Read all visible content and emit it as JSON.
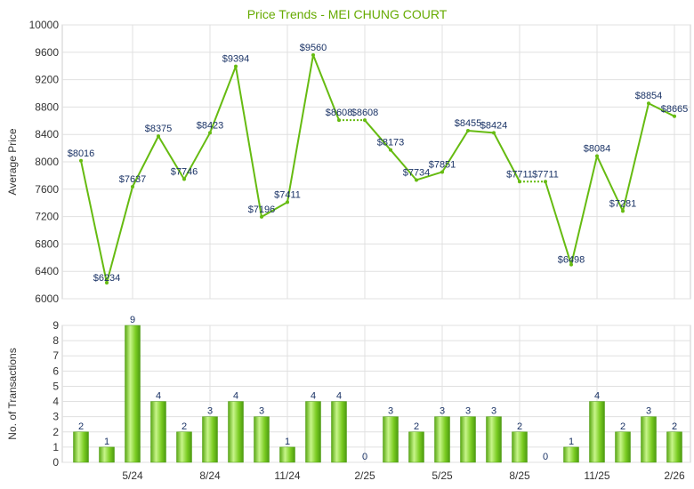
{
  "chart_data": [
    {
      "type": "line",
      "title": "Price Trends - MEI CHUNG COURT",
      "ylabel": "Average Price",
      "xlabel": "",
      "ylim": [
        6000,
        10000
      ],
      "yticks": [
        6000,
        6400,
        6800,
        7200,
        7600,
        8000,
        8400,
        8800,
        9200,
        9600,
        10000
      ],
      "grid": true,
      "colors": {
        "line": "#66bb11",
        "label": "#1a3366",
        "title": "#66aa00",
        "grid": "#dddddd"
      },
      "series": [
        {
          "values": [
            8016,
            6234,
            7637,
            8375,
            7746,
            8423,
            9394,
            7196,
            7411,
            9560,
            8608,
            8608,
            8173,
            7734,
            7851,
            8455,
            8424,
            7711,
            7711,
            6498,
            8084,
            7281,
            8854,
            8665
          ],
          "labels": [
            "$8016",
            "$6234",
            "$7637",
            "$8375",
            "$7746",
            "$8423",
            "$9394",
            "$7196",
            "$7411",
            "$9560",
            "$8608",
            "$8608",
            "$8173",
            "$7734",
            "$7851",
            "$8455",
            "$8424",
            "$7711",
            "$7711",
            "$6498",
            "$8084",
            "$7281",
            "$8854",
            "$8665"
          ],
          "imputed_segments": [
            [
              10,
              11
            ],
            [
              17,
              18
            ]
          ]
        }
      ]
    },
    {
      "type": "bar",
      "title": "",
      "ylabel": "No. of Transactions",
      "xlabel": "",
      "ylim": [
        0,
        9
      ],
      "yticks": [
        0,
        1,
        2,
        3,
        4,
        5,
        6,
        7,
        8,
        9
      ],
      "grid": true,
      "xticks": [
        "5/24",
        "8/24",
        "11/24",
        "2/25",
        "5/25",
        "8/25",
        "11/25",
        "2/26"
      ],
      "xtick_index": [
        2,
        5,
        8,
        11,
        14,
        17,
        20,
        23
      ],
      "colors": {
        "bar_light": "#bff07a",
        "bar_mid": "#7acc22",
        "bar_dark": "#4c9a10"
      },
      "series": [
        {
          "values": [
            2,
            1,
            9,
            4,
            2,
            3,
            4,
            3,
            1,
            4,
            4,
            0,
            3,
            2,
            3,
            3,
            3,
            2,
            0,
            1,
            4,
            2,
            3,
            2
          ]
        }
      ]
    }
  ]
}
